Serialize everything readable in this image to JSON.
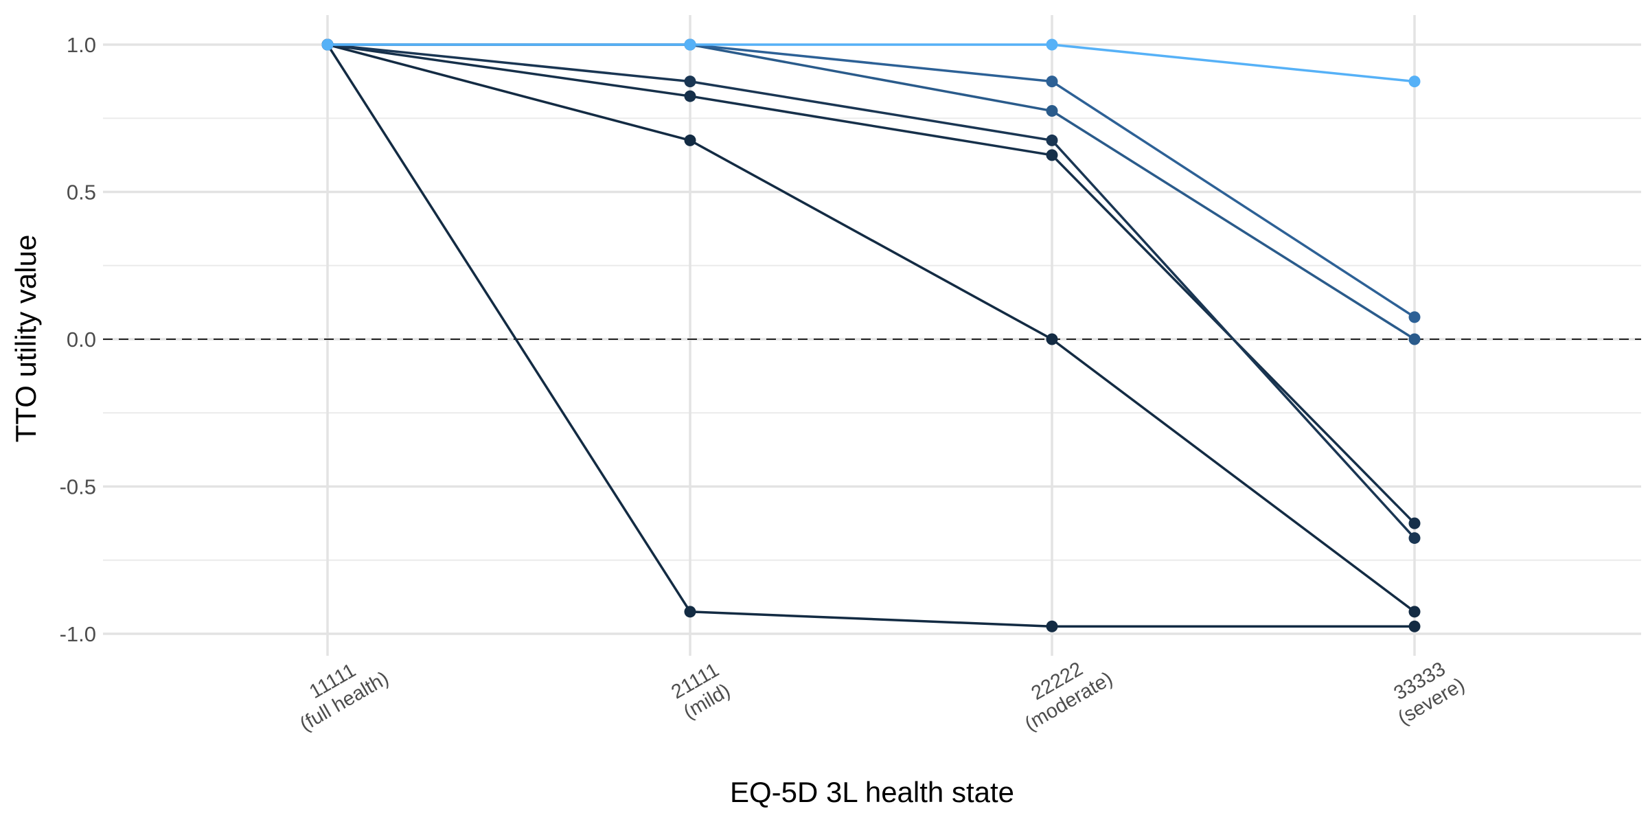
{
  "chart_data": {
    "type": "line",
    "xlabel": "EQ-5D 3L health state",
    "ylabel": "TTO utility value",
    "categories": [
      [
        "11111",
        "(full health)"
      ],
      [
        "21111",
        "(mild)"
      ],
      [
        "22222",
        "(moderate)"
      ],
      [
        "33333",
        "(severe)"
      ]
    ],
    "ylim": [
      -1.1,
      1.1
    ],
    "yticks": [
      -1.0,
      -0.5,
      0.0,
      0.5,
      1.0
    ],
    "ytick_labels": [
      "-1.0",
      "-0.5",
      "0.0",
      "0.5",
      "1.0"
    ],
    "grid": true,
    "reference_line": {
      "y": 0,
      "style": "dashed"
    },
    "series": [
      {
        "values": [
          1.0,
          -0.925,
          -0.975,
          -0.975
        ],
        "color": "#132b43"
      },
      {
        "values": [
          1.0,
          0.675,
          0.0,
          -0.925
        ],
        "color": "#132b43"
      },
      {
        "values": [
          1.0,
          0.825,
          0.625,
          -0.625
        ],
        "color": "#16304a"
      },
      {
        "values": [
          1.0,
          0.875,
          0.675,
          -0.675
        ],
        "color": "#1a3653"
      },
      {
        "values": [
          1.0,
          1.0,
          0.775,
          0.0
        ],
        "color": "#2a5b8b"
      },
      {
        "values": [
          1.0,
          1.0,
          0.875,
          0.075
        ],
        "color": "#2d6196"
      },
      {
        "values": [
          1.0,
          1.0,
          1.0,
          0.875
        ],
        "color": "#56b1f7"
      }
    ]
  }
}
